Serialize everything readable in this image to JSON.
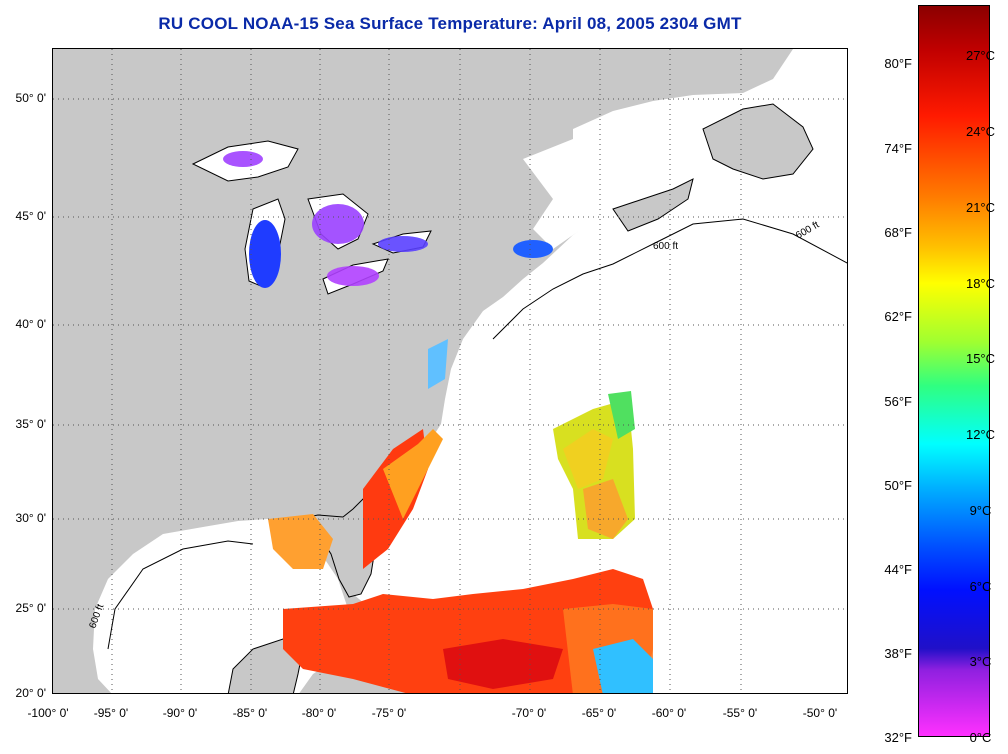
{
  "title": "RU COOL  NOAA-15  Sea Surface Temperature:  April 08, 2005 2304 GMT",
  "map": {
    "lat_labels": [
      "50° 0'",
      "45° 0'",
      "40° 0'",
      "35° 0'",
      "30° 0'",
      "25° 0'",
      "20° 0'"
    ],
    "lon_labels": [
      "-100° 0'",
      "-95° 0'",
      "-90° 0'",
      "-85° 0'",
      "-80° 0'",
      "-75° 0'",
      "-70° 0'",
      "-65° 0'",
      "-60° 0'",
      "-55° 0'",
      "-50° 0'"
    ],
    "contour_label": "600 ft",
    "land_color": "#c8c8c8",
    "ocean_color": "#ffffff"
  },
  "colorbar": {
    "fahrenheit_labels": [
      "80°F",
      "74°F",
      "68°F",
      "62°F",
      "56°F",
      "50°F",
      "44°F",
      "38°F",
      "32°F"
    ],
    "celsius_labels": [
      "27°C",
      "24°C",
      "21°C",
      "18°C",
      "15°C",
      "12°C",
      "9°C",
      "6°C",
      "3°C",
      "0°C"
    ]
  }
}
